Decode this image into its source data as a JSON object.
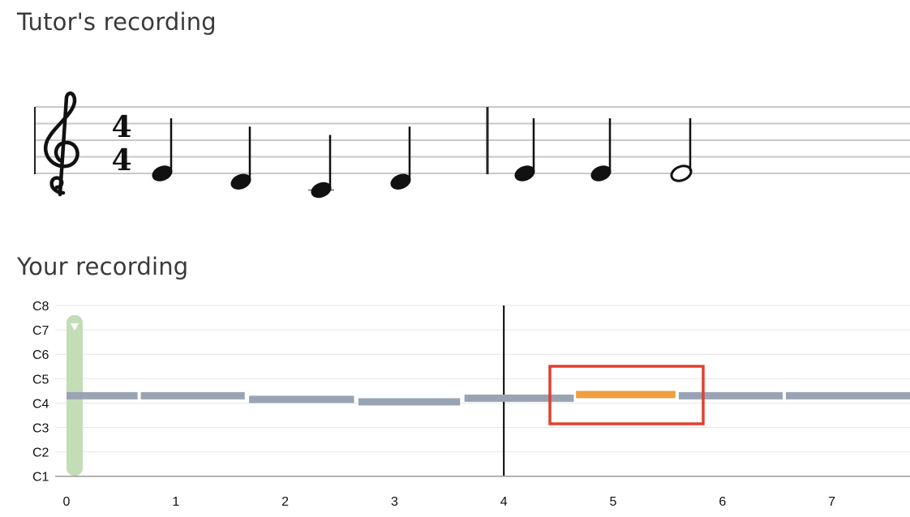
{
  "tutor_section": {
    "title": "Tutor's recording",
    "time_signature": {
      "top": "4",
      "bottom": "4"
    },
    "clef": "treble-clef-icon",
    "notes": [
      {
        "pitch": "E4",
        "type": "quarter"
      },
      {
        "pitch": "D4",
        "type": "quarter"
      },
      {
        "pitch": "C4",
        "type": "quarter"
      },
      {
        "pitch": "D4",
        "type": "quarter"
      },
      {
        "pitch": "E4",
        "type": "quarter"
      },
      {
        "pitch": "E4",
        "type": "quarter"
      },
      {
        "pitch": "E4",
        "type": "half"
      }
    ]
  },
  "user_section": {
    "title": "Your recording",
    "y_labels": [
      "C8",
      "C7",
      "C6",
      "C5",
      "C4",
      "C3",
      "C2",
      "C1"
    ],
    "x_labels": [
      "0",
      "1",
      "2",
      "3",
      "4",
      "5",
      "6",
      "7"
    ],
    "playhead_time": 4,
    "highlight_color": "#e0402e",
    "segment_color": "#9aa3b3",
    "error_color": "#f0a040",
    "slider_color": "#c3ddb6",
    "segments": [
      {
        "start": 0.0,
        "end": 0.65,
        "octave": 4.3,
        "state": "normal"
      },
      {
        "start": 0.68,
        "end": 1.63,
        "octave": 4.3,
        "state": "normal"
      },
      {
        "start": 1.67,
        "end": 2.63,
        "octave": 4.15,
        "state": "normal"
      },
      {
        "start": 2.67,
        "end": 3.6,
        "octave": 4.05,
        "state": "normal"
      },
      {
        "start": 3.64,
        "end": 4.64,
        "octave": 4.2,
        "state": "normal"
      },
      {
        "start": 4.66,
        "end": 5.57,
        "octave": 4.35,
        "state": "error"
      },
      {
        "start": 5.6,
        "end": 6.55,
        "octave": 4.3,
        "state": "normal"
      },
      {
        "start": 6.58,
        "end": 7.75,
        "octave": 4.3,
        "state": "normal"
      }
    ]
  }
}
